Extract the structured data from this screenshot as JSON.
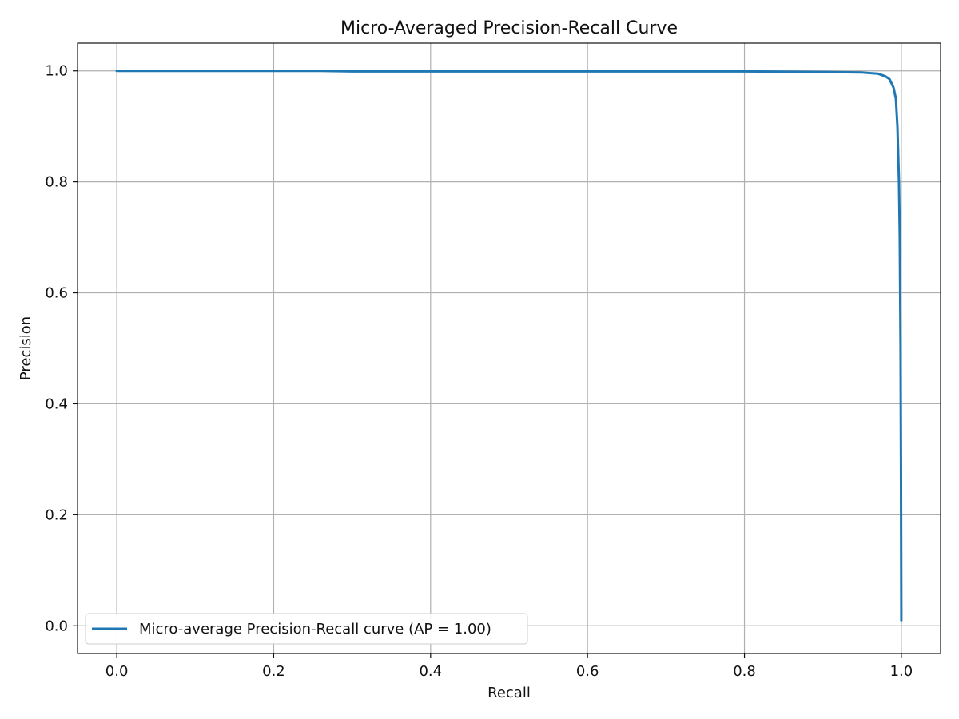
{
  "chart_data": {
    "type": "line",
    "title": "Micro-Averaged Precision-Recall Curve",
    "xlabel": "Recall",
    "ylabel": "Precision",
    "xlim": [
      -0.05,
      1.05
    ],
    "ylim": [
      -0.05,
      1.05
    ],
    "xticks": [
      0.0,
      0.2,
      0.4,
      0.6,
      0.8,
      1.0
    ],
    "yticks": [
      0.0,
      0.2,
      0.4,
      0.6,
      0.8,
      1.0
    ],
    "xtick_labels": [
      "0.0",
      "0.2",
      "0.4",
      "0.6",
      "0.8",
      "1.0"
    ],
    "ytick_labels": [
      "0.0",
      "0.2",
      "0.4",
      "0.6",
      "0.8",
      "1.0"
    ],
    "grid": true,
    "legend_position": "lower-left",
    "series": [
      {
        "name": "Micro-average Precision-Recall curve (AP = 1.00)",
        "color": "#1f77b4",
        "x": [
          0.0,
          0.1,
          0.2,
          0.26,
          0.3,
          0.4,
          0.5,
          0.6,
          0.7,
          0.8,
          0.9,
          0.95,
          0.97,
          0.98,
          0.985,
          0.99,
          0.993,
          0.995,
          0.997,
          0.998,
          0.999,
          0.9995,
          1.0
        ],
        "y": [
          1.0,
          1.0,
          1.0,
          1.0,
          0.999,
          0.999,
          0.999,
          0.999,
          0.999,
          0.999,
          0.998,
          0.997,
          0.995,
          0.99,
          0.985,
          0.97,
          0.95,
          0.9,
          0.8,
          0.7,
          0.5,
          0.3,
          0.01
        ]
      }
    ]
  }
}
